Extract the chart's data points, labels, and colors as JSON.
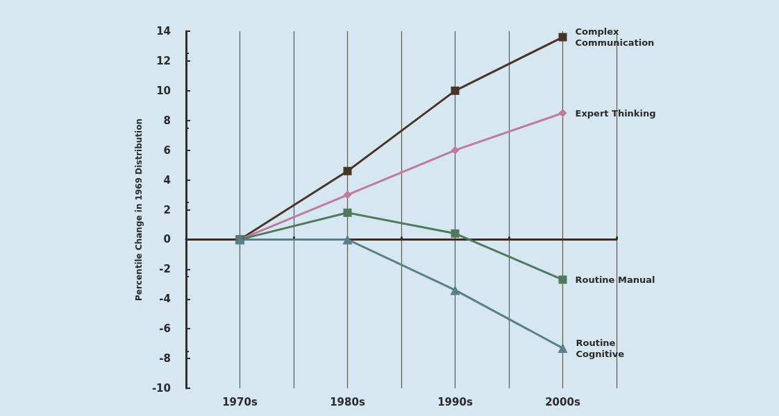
{
  "chart_data": {
    "type": "line",
    "ylabel": "Percentile Change in 1969 Distribution",
    "categories": [
      "1970s",
      "1980s",
      "1990s",
      "2000s"
    ],
    "series": [
      {
        "name": "Complex Communication",
        "color": "#4a3428",
        "marker": "square",
        "values": [
          0,
          4.6,
          10,
          13.6
        ]
      },
      {
        "name": "Expert Thinking",
        "color": "#c07a9a",
        "marker": "diamond",
        "values": [
          0,
          3,
          6,
          8.5
        ]
      },
      {
        "name": "Routine Manual",
        "color": "#4f7a5e",
        "marker": "square",
        "values": [
          0,
          1.8,
          0.4,
          -2.7
        ]
      },
      {
        "name": "Routine Cognitive",
        "color": "#5a7f8a",
        "marker": "triangle",
        "values": [
          0,
          0,
          -3.4,
          -7.3
        ]
      }
    ],
    "ylim": [
      -10,
      14
    ],
    "yticks": [
      -10,
      -8,
      -6,
      -4,
      -2,
      0,
      2,
      4,
      6,
      8,
      10,
      12,
      14
    ],
    "grid": "x",
    "legend": false,
    "line_style": "solid"
  }
}
